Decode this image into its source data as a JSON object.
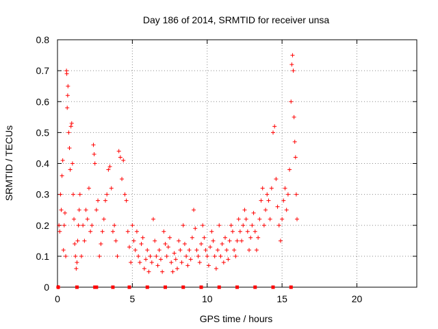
{
  "chart_data": {
    "type": "scatter",
    "title": "Day 186 of 2014, SRMTID for receiver unsa",
    "xlabel": "GPS time / hours",
    "ylabel": "SRMTID / TECUs",
    "xlim": [
      0,
      24
    ],
    "ylim": [
      0,
      0.8
    ],
    "xticks": [
      0,
      5,
      10,
      15,
      20
    ],
    "xtick_labels": [
      "0",
      "5",
      "10",
      "15",
      "20"
    ],
    "yticks": [
      0,
      0.1,
      0.2,
      0.3,
      0.4,
      0.5,
      0.6,
      0.7,
      0.8
    ],
    "ytick_labels": [
      "0",
      "0.1",
      "0.2",
      "0.3",
      "0.4",
      "0.5",
      "0.6",
      "0.7",
      "0.8"
    ],
    "grid": true,
    "marker": "+",
    "color": "#ff0000",
    "series": [
      {
        "name": "SRMTID",
        "points": [
          [
            0.05,
            0.0
          ],
          [
            0.1,
            0.2
          ],
          [
            0.15,
            0.18
          ],
          [
            0.2,
            0.3
          ],
          [
            0.25,
            0.25
          ],
          [
            0.3,
            0.36
          ],
          [
            0.35,
            0.41
          ],
          [
            0.4,
            0.12
          ],
          [
            0.45,
            0.2
          ],
          [
            0.5,
            0.24
          ],
          [
            0.55,
            0.1
          ],
          [
            0.6,
            0.7
          ],
          [
            0.62,
            0.69
          ],
          [
            0.65,
            0.58
          ],
          [
            0.68,
            0.62
          ],
          [
            0.7,
            0.65
          ],
          [
            0.75,
            0.5
          ],
          [
            0.8,
            0.45
          ],
          [
            0.85,
            0.38
          ],
          [
            0.9,
            0.52
          ],
          [
            0.95,
            0.53
          ],
          [
            1.0,
            0.4
          ],
          [
            1.05,
            0.3
          ],
          [
            1.1,
            0.22
          ],
          [
            1.15,
            0.14
          ],
          [
            1.2,
            0.1
          ],
          [
            1.25,
            0.06
          ],
          [
            1.3,
            0.08
          ],
          [
            1.35,
            0.15
          ],
          [
            1.4,
            0.2
          ],
          [
            1.45,
            0.25
          ],
          [
            1.5,
            0.3
          ],
          [
            1.6,
            0.1
          ],
          [
            1.7,
            0.2
          ],
          [
            1.8,
            0.15
          ],
          [
            1.9,
            0.25
          ],
          [
            2.0,
            0.22
          ],
          [
            2.1,
            0.32
          ],
          [
            2.2,
            0.18
          ],
          [
            2.3,
            0.2
          ],
          [
            2.4,
            0.46
          ],
          [
            2.45,
            0.43
          ],
          [
            2.5,
            0.4
          ],
          [
            2.6,
            0.25
          ],
          [
            2.7,
            0.28
          ],
          [
            2.8,
            0.1
          ],
          [
            2.9,
            0.14
          ],
          [
            3.0,
            0.18
          ],
          [
            3.1,
            0.22
          ],
          [
            3.2,
            0.28
          ],
          [
            3.3,
            0.3
          ],
          [
            3.4,
            0.38
          ],
          [
            3.5,
            0.39
          ],
          [
            3.6,
            0.32
          ],
          [
            3.7,
            0.18
          ],
          [
            3.8,
            0.2
          ],
          [
            3.9,
            0.15
          ],
          [
            4.0,
            0.1
          ],
          [
            4.1,
            0.44
          ],
          [
            4.2,
            0.42
          ],
          [
            4.3,
            0.35
          ],
          [
            4.4,
            0.41
          ],
          [
            4.5,
            0.3
          ],
          [
            4.6,
            0.28
          ],
          [
            4.7,
            0.18
          ],
          [
            4.8,
            0.13
          ],
          [
            4.9,
            0.08
          ],
          [
            5.0,
            0.2
          ],
          [
            5.1,
            0.15
          ],
          [
            5.2,
            0.12
          ],
          [
            5.3,
            0.18
          ],
          [
            5.4,
            0.1
          ],
          [
            5.5,
            0.08
          ],
          [
            5.6,
            0.14
          ],
          [
            5.7,
            0.16
          ],
          [
            5.8,
            0.06
          ],
          [
            5.9,
            0.09
          ],
          [
            6.0,
            0.12
          ],
          [
            6.1,
            0.05
          ],
          [
            6.2,
            0.1
          ],
          [
            6.3,
            0.08
          ],
          [
            6.4,
            0.22
          ],
          [
            6.5,
            0.15
          ],
          [
            6.6,
            0.1
          ],
          [
            6.7,
            0.07
          ],
          [
            6.8,
            0.12
          ],
          [
            6.9,
            0.09
          ],
          [
            7.0,
            0.05
          ],
          [
            7.1,
            0.18
          ],
          [
            7.2,
            0.14
          ],
          [
            7.3,
            0.1
          ],
          [
            7.4,
            0.13
          ],
          [
            7.5,
            0.16
          ],
          [
            7.6,
            0.08
          ],
          [
            7.7,
            0.05
          ],
          [
            7.8,
            0.11
          ],
          [
            7.9,
            0.09
          ],
          [
            8.0,
            0.06
          ],
          [
            8.1,
            0.15
          ],
          [
            8.2,
            0.12
          ],
          [
            8.3,
            0.08
          ],
          [
            8.4,
            0.2
          ],
          [
            8.5,
            0.14
          ],
          [
            8.6,
            0.1
          ],
          [
            8.7,
            0.07
          ],
          [
            8.8,
            0.12
          ],
          [
            8.9,
            0.09
          ],
          [
            9.0,
            0.16
          ],
          [
            9.1,
            0.25
          ],
          [
            9.2,
            0.19
          ],
          [
            9.3,
            0.12
          ],
          [
            9.4,
            0.1
          ],
          [
            9.5,
            0.08
          ],
          [
            9.6,
            0.14
          ],
          [
            9.7,
            0.2
          ],
          [
            9.8,
            0.16
          ],
          [
            9.9,
            0.12
          ],
          [
            10.0,
            0.1
          ],
          [
            10.1,
            0.07
          ],
          [
            10.2,
            0.13
          ],
          [
            10.3,
            0.18
          ],
          [
            10.4,
            0.15
          ],
          [
            10.5,
            0.1
          ],
          [
            10.6,
            0.06
          ],
          [
            10.7,
            0.12
          ],
          [
            10.8,
            0.2
          ],
          [
            10.9,
            0.1
          ],
          [
            11.0,
            0.14
          ],
          [
            11.1,
            0.08
          ],
          [
            11.2,
            0.16
          ],
          [
            11.3,
            0.12
          ],
          [
            11.4,
            0.09
          ],
          [
            11.5,
            0.15
          ],
          [
            11.6,
            0.2
          ],
          [
            11.7,
            0.18
          ],
          [
            11.8,
            0.12
          ],
          [
            11.9,
            0.1
          ],
          [
            12.0,
            0.15
          ],
          [
            12.1,
            0.22
          ],
          [
            12.2,
            0.18
          ],
          [
            12.3,
            0.15
          ],
          [
            12.4,
            0.2
          ],
          [
            12.5,
            0.25
          ],
          [
            12.6,
            0.22
          ],
          [
            12.7,
            0.18
          ],
          [
            12.8,
            0.12
          ],
          [
            12.9,
            0.16
          ],
          [
            13.0,
            0.2
          ],
          [
            13.1,
            0.24
          ],
          [
            13.2,
            0.18
          ],
          [
            13.3,
            0.12
          ],
          [
            13.4,
            0.16
          ],
          [
            13.5,
            0.22
          ],
          [
            13.6,
            0.28
          ],
          [
            13.7,
            0.32
          ],
          [
            13.8,
            0.2
          ],
          [
            13.9,
            0.25
          ],
          [
            14.0,
            0.3
          ],
          [
            14.1,
            0.28
          ],
          [
            14.2,
            0.22
          ],
          [
            14.3,
            0.32
          ],
          [
            14.4,
            0.5
          ],
          [
            14.5,
            0.52
          ],
          [
            14.6,
            0.35
          ],
          [
            14.7,
            0.26
          ],
          [
            14.8,
            0.2
          ],
          [
            14.9,
            0.15
          ],
          [
            15.0,
            0.22
          ],
          [
            15.1,
            0.28
          ],
          [
            15.2,
            0.32
          ],
          [
            15.3,
            0.25
          ],
          [
            15.4,
            0.3
          ],
          [
            15.5,
            0.38
          ],
          [
            15.6,
            0.6
          ],
          [
            15.65,
            0.72
          ],
          [
            15.7,
            0.75
          ],
          [
            15.75,
            0.7
          ],
          [
            15.8,
            0.55
          ],
          [
            15.85,
            0.47
          ],
          [
            15.9,
            0.42
          ],
          [
            15.95,
            0.3
          ],
          [
            16.0,
            0.22
          ]
        ]
      }
    ],
    "baseline_points_x": [
      0.05,
      1.3,
      2.5,
      2.6,
      3.7,
      4.8,
      6.0,
      7.2,
      8.4,
      9.6,
      10.8,
      12.0,
      13.2,
      14.4,
      15.6
    ]
  }
}
